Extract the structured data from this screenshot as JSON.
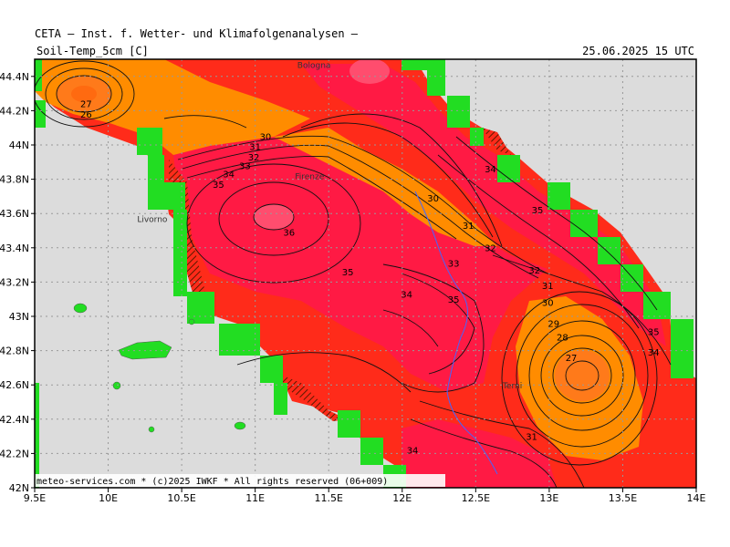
{
  "header": {
    "title": "CETA — Inst. f. Wetter- und Klimafolgenanalysen —",
    "variable": "Soil-Temp_5cm [C]",
    "valid_time": "25.06.2025 15 UTC"
  },
  "credit": "meteo-services.com * (c)2025 IWKF * All rights reserved (06+009)",
  "axes": {
    "x_ticks": [
      "9.5E",
      "10E",
      "10.5E",
      "11E",
      "11.5E",
      "12E",
      "12.5E",
      "13E",
      "13.5E",
      "14E"
    ],
    "y_ticks": [
      "42N",
      "42.2N",
      "42.4N",
      "42.6N",
      "42.8N",
      "43N",
      "43.2N",
      "43.4N",
      "43.6N",
      "43.8N",
      "44N",
      "44.2N",
      "44.4N"
    ]
  },
  "cities": [
    {
      "name": "Bologna",
      "lon": 11.4,
      "lat": 44.45
    },
    {
      "name": "Firenze",
      "lon": 11.37,
      "lat": 43.8
    },
    {
      "name": "Livorno",
      "lon": 10.3,
      "lat": 43.55
    },
    {
      "name": "Terni",
      "lon": 12.75,
      "lat": 42.58
    }
  ],
  "contour_labels": [
    {
      "text": "27",
      "lon": 9.85,
      "lat": 44.22
    },
    {
      "text": "26",
      "lon": 9.85,
      "lat": 44.16
    },
    {
      "text": "30",
      "lon": 11.07,
      "lat": 44.03
    },
    {
      "text": "31",
      "lon": 11.0,
      "lat": 43.97
    },
    {
      "text": "32",
      "lon": 10.99,
      "lat": 43.91
    },
    {
      "text": "33",
      "lon": 10.93,
      "lat": 43.86
    },
    {
      "text": "34",
      "lon": 10.82,
      "lat": 43.81
    },
    {
      "text": "35",
      "lon": 10.75,
      "lat": 43.75
    },
    {
      "text": "36",
      "lon": 11.23,
      "lat": 43.47
    },
    {
      "text": "35",
      "lon": 11.63,
      "lat": 43.24
    },
    {
      "text": "34",
      "lon": 12.03,
      "lat": 43.11
    },
    {
      "text": "33",
      "lon": 12.35,
      "lat": 43.29
    },
    {
      "text": "35",
      "lon": 12.35,
      "lat": 43.08
    },
    {
      "text": "31",
      "lon": 12.45,
      "lat": 43.51
    },
    {
      "text": "32",
      "lon": 12.6,
      "lat": 43.38
    },
    {
      "text": "30",
      "lon": 12.21,
      "lat": 43.67
    },
    {
      "text": "34",
      "lon": 12.6,
      "lat": 43.84
    },
    {
      "text": "35",
      "lon": 12.92,
      "lat": 43.6
    },
    {
      "text": "32",
      "lon": 12.9,
      "lat": 43.25
    },
    {
      "text": "31",
      "lon": 12.99,
      "lat": 43.16
    },
    {
      "text": "30",
      "lon": 12.99,
      "lat": 43.06
    },
    {
      "text": "29",
      "lon": 13.03,
      "lat": 42.94
    },
    {
      "text": "28",
      "lon": 13.09,
      "lat": 42.86
    },
    {
      "text": "27",
      "lon": 13.15,
      "lat": 42.74
    },
    {
      "text": "35",
      "lon": 13.71,
      "lat": 42.89
    },
    {
      "text": "34",
      "lon": 13.71,
      "lat": 42.77
    },
    {
      "text": "31",
      "lon": 12.88,
      "lat": 42.28
    },
    {
      "text": "34",
      "lon": 12.07,
      "lat": 42.2
    }
  ],
  "colors": {
    "land_water": "#dcdcdc",
    "outside_domain": "#ffffff",
    "t26_27": "#ff7a1a",
    "t28_30": "#ff8c00",
    "t31_32": "#ff2b1a",
    "t33_35": "#ff1a44",
    "t36": "#ff4d6e",
    "masked": "#22dd22",
    "grid": "#999999"
  }
}
